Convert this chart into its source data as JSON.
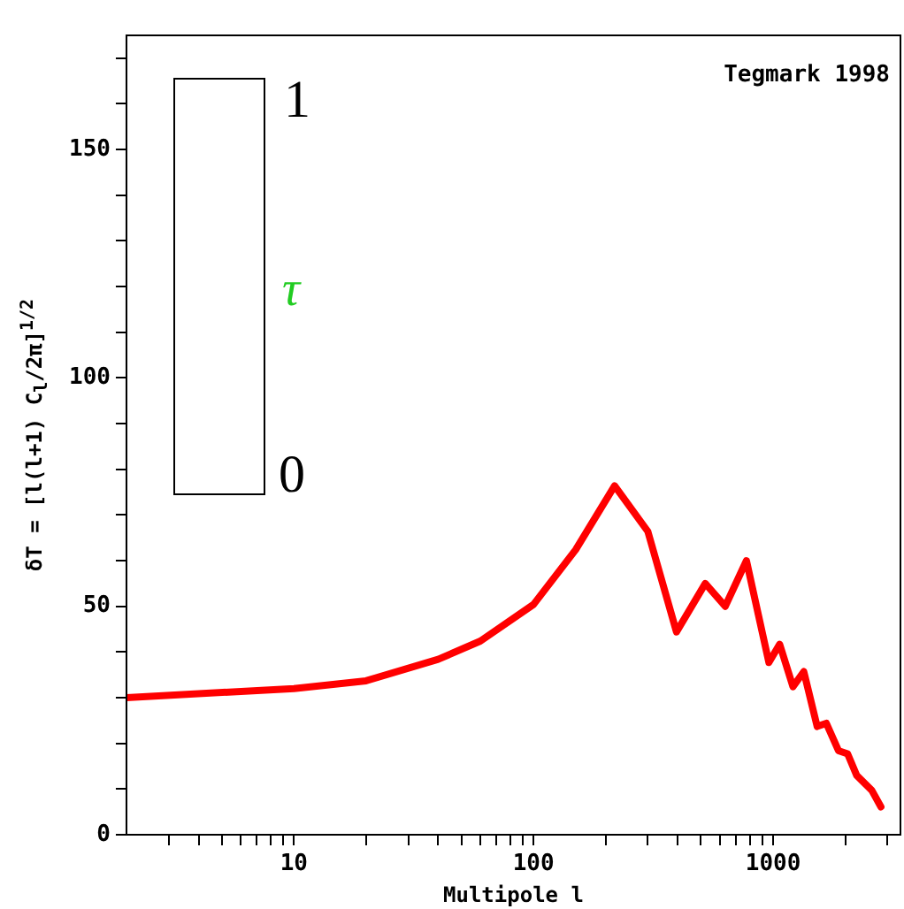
{
  "chart_data": {
    "type": "line",
    "xlabel": "Multipole l",
    "ylabel": "δT = [l(l+1) C$_{l}$/2π]$^{1/2}$",
    "annotations": [
      "Tegmark 1998",
      "1",
      "τ",
      "0"
    ],
    "log": "x",
    "grid": false,
    "legend": false,
    "marker": "none",
    "line_style": "solid",
    "xlim": [
      2,
      3400
    ],
    "ylim": [
      0,
      175
    ],
    "xticks": [
      {
        "value": 3,
        "label": null
      },
      {
        "value": 4,
        "label": null
      },
      {
        "value": 5,
        "label": null
      },
      {
        "value": 6,
        "label": null
      },
      {
        "value": 7,
        "label": null
      },
      {
        "value": 8,
        "label": null
      },
      {
        "value": 9,
        "label": null
      },
      10,
      {
        "value": 20,
        "label": null
      },
      {
        "value": 30,
        "label": null
      },
      {
        "value": 40,
        "label": null
      },
      {
        "value": 50,
        "label": null
      },
      {
        "value": 60,
        "label": null
      },
      {
        "value": 70,
        "label": null
      },
      {
        "value": 80,
        "label": null
      },
      {
        "value": 90,
        "label": null
      },
      100,
      {
        "value": 200,
        "label": null
      },
      {
        "value": 300,
        "label": null
      },
      {
        "value": 400,
        "label": null
      },
      {
        "value": 500,
        "label": null
      },
      {
        "value": 600,
        "label": null
      },
      {
        "value": 700,
        "label": null
      },
      {
        "value": 800,
        "label": null
      },
      {
        "value": 900,
        "label": null
      },
      1000,
      {
        "value": 2000,
        "label": null
      },
      {
        "value": 3000,
        "label": null
      }
    ],
    "yticks": [
      0,
      {
        "value": 10,
        "label": null
      },
      {
        "value": 20,
        "label": null
      },
      {
        "value": 30,
        "label": null
      },
      {
        "value": 40,
        "label": null
      },
      50,
      {
        "value": 60,
        "label": null
      },
      {
        "value": 70,
        "label": null
      },
      {
        "value": 80,
        "label": null
      },
      {
        "value": 90,
        "label": null
      },
      100,
      {
        "value": 110,
        "label": null
      },
      {
        "value": 120,
        "label": null
      },
      {
        "value": 130,
        "label": null
      },
      {
        "value": 140,
        "label": null
      },
      150,
      {
        "value": 160,
        "label": null
      },
      {
        "value": 170,
        "label": null
      }
    ],
    "series": [
      {
        "color": "#ff0000",
        "x": [
          2,
          10,
          20,
          40,
          60,
          100,
          150,
          218,
          300,
          395,
          521,
          631,
          774,
          906,
          960,
          1065,
          1210,
          1343,
          1527,
          1667,
          1874,
          2046,
          2232,
          2582,
          2818
        ],
        "values": [
          30,
          32,
          33.7,
          38.4,
          42.4,
          50.4,
          62.4,
          76.4,
          66.4,
          44.4,
          55,
          50,
          60,
          43.7,
          37.7,
          41.7,
          32.4,
          35.7,
          23.7,
          24.4,
          18.4,
          17.7,
          13,
          9.7,
          6.1
        ]
      }
    ]
  }
}
